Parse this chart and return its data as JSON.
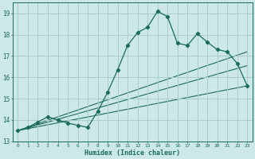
{
  "xlabel": "Humidex (Indice chaleur)",
  "bg_color": "#cce8e8",
  "grid_color": "#aacccc",
  "line_color": "#1a6b5a",
  "xlim": [
    -0.5,
    23.5
  ],
  "ylim": [
    13,
    19.5
  ],
  "yticks": [
    13,
    14,
    15,
    16,
    17,
    18,
    19
  ],
  "xticks": [
    0,
    1,
    2,
    3,
    4,
    5,
    6,
    7,
    8,
    9,
    10,
    11,
    12,
    13,
    14,
    15,
    16,
    17,
    18,
    19,
    20,
    21,
    22,
    23
  ],
  "main_line": {
    "x": [
      0,
      1,
      2,
      3,
      4,
      5,
      6,
      7,
      8,
      9,
      10,
      11,
      12,
      13,
      14,
      15,
      16,
      17,
      18,
      19,
      20,
      21,
      22,
      23
    ],
    "y": [
      13.5,
      13.65,
      13.9,
      14.15,
      14.0,
      13.85,
      13.75,
      13.65,
      14.4,
      15.3,
      16.35,
      17.5,
      18.1,
      18.35,
      19.1,
      18.85,
      17.6,
      17.5,
      18.05,
      17.65,
      17.3,
      17.2,
      16.65,
      15.6
    ]
  },
  "straight_lines": [
    {
      "x": [
        0,
        23
      ],
      "y": [
        13.5,
        17.2
      ]
    },
    {
      "x": [
        0,
        23
      ],
      "y": [
        13.5,
        16.55
      ]
    },
    {
      "x": [
        0,
        23
      ],
      "y": [
        13.5,
        15.6
      ]
    }
  ]
}
